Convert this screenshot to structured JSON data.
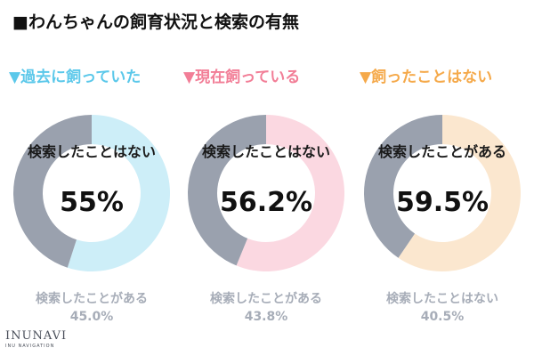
{
  "title": "■わんちゃんの飼育状況と検索の有無",
  "logo": {
    "main": "INUNAVI",
    "sub": "INU NAVIGATION"
  },
  "colors": {
    "grey": "#9aa1ae",
    "blue": "#cdeef8",
    "pink": "#fbd8e1",
    "orange": "#fbe7cf"
  },
  "chart_data": [
    {
      "type": "pie",
      "title": "▼過去に飼っていた",
      "title_color": "#5bc8ea",
      "labels": [
        "検索したことはない",
        "検索したことがある"
      ],
      "values": [
        55.0,
        45.0
      ],
      "center_label": "検索したことはない",
      "center_value": "55%",
      "bottom_label": "検索したことがある",
      "bottom_value": "45.0%",
      "ring_colors": [
        "#cdeef8",
        "#9aa1ae"
      ]
    },
    {
      "type": "pie",
      "title": "▼現在飼っている",
      "title_color": "#f27e97",
      "labels": [
        "検索したことはない",
        "検索したことがある"
      ],
      "values": [
        56.2,
        43.8
      ],
      "center_label": "検索したことはない",
      "center_value": "56.2%",
      "bottom_label": "検索したことがある",
      "bottom_value": "43.8%",
      "ring_colors": [
        "#fbd8e1",
        "#9aa1ae"
      ]
    },
    {
      "type": "pie",
      "title": "▼飼ったことはない",
      "title_color": "#f5a94a",
      "labels": [
        "検索したことがある",
        "検索したことはない"
      ],
      "values": [
        59.5,
        40.5
      ],
      "center_label": "検索したことがある",
      "center_value": "59.5%",
      "bottom_label": "検索したことはない",
      "bottom_value": "40.5%",
      "ring_colors": [
        "#fbe7cf",
        "#9aa1ae"
      ]
    }
  ]
}
